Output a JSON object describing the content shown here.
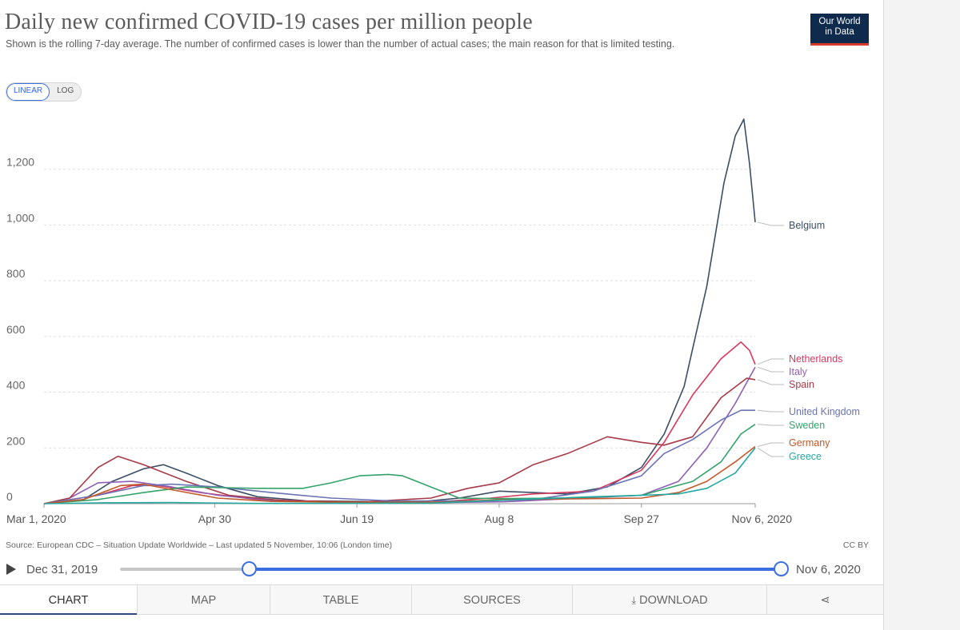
{
  "header": {
    "title": "Daily new confirmed COVID-19 cases per million people",
    "subtitle": "Shown is the rolling 7-day average. The number of confirmed cases is lower than the number of actual cases; the main reason for that is limited testing.",
    "logo_line1": "Our World",
    "logo_line2": "in Data"
  },
  "scale_toggle": {
    "linear": "LINEAR",
    "log": "LOG",
    "selected": "LINEAR"
  },
  "chart_data": {
    "type": "line",
    "title": "Daily new confirmed COVID-19 cases per million people",
    "xlabel": "",
    "ylabel": "",
    "x_ticks": [
      "Mar 1, 2020",
      "Apr 30",
      "Jun 19",
      "Aug 8",
      "Sep 27",
      "Nov 6, 2020"
    ],
    "y_ticks": [
      "0",
      "200",
      "400",
      "600",
      "800",
      "1,000",
      "1,200"
    ],
    "ylim": [
      0,
      1400
    ],
    "xlim": [
      "2020-03-01",
      "2020-11-06"
    ],
    "grid": "horizontal dashed",
    "legend": "line-end labels",
    "series": [
      {
        "name": "Belgium",
        "color": "#3c4e66",
        "points": [
          [
            "2020-03-01",
            0
          ],
          [
            "2020-03-15",
            15
          ],
          [
            "2020-03-25",
            80
          ],
          [
            "2020-04-05",
            125
          ],
          [
            "2020-04-12",
            140
          ],
          [
            "2020-04-20",
            110
          ],
          [
            "2020-05-01",
            65
          ],
          [
            "2020-05-15",
            25
          ],
          [
            "2020-06-01",
            10
          ],
          [
            "2020-06-20",
            8
          ],
          [
            "2020-07-10",
            6
          ],
          [
            "2020-07-25",
            20
          ],
          [
            "2020-08-08",
            45
          ],
          [
            "2020-08-20",
            40
          ],
          [
            "2020-09-01",
            35
          ],
          [
            "2020-09-15",
            60
          ],
          [
            "2020-09-27",
            130
          ],
          [
            "2020-10-05",
            250
          ],
          [
            "2020-10-12",
            420
          ],
          [
            "2020-10-20",
            780
          ],
          [
            "2020-10-26",
            1150
          ],
          [
            "2020-10-30",
            1320
          ],
          [
            "2020-11-02",
            1380
          ],
          [
            "2020-11-04",
            1220
          ],
          [
            "2020-11-06",
            1010
          ]
        ]
      },
      {
        "name": "Netherlands",
        "color": "#d7385e",
        "points": [
          [
            "2020-03-01",
            0
          ],
          [
            "2020-03-20",
            30
          ],
          [
            "2020-04-01",
            65
          ],
          [
            "2020-04-10",
            65
          ],
          [
            "2020-04-25",
            40
          ],
          [
            "2020-05-15",
            15
          ],
          [
            "2020-06-15",
            5
          ],
          [
            "2020-07-15",
            5
          ],
          [
            "2020-08-05",
            20
          ],
          [
            "2020-08-20",
            35
          ],
          [
            "2020-09-10",
            45
          ],
          [
            "2020-09-27",
            120
          ],
          [
            "2020-10-05",
            220
          ],
          [
            "2020-10-15",
            390
          ],
          [
            "2020-10-25",
            520
          ],
          [
            "2020-11-01",
            580
          ],
          [
            "2020-11-04",
            550
          ],
          [
            "2020-11-06",
            500
          ]
        ]
      },
      {
        "name": "Italy",
        "color": "#8e5fb5",
        "points": [
          [
            "2020-03-01",
            0
          ],
          [
            "2020-03-10",
            20
          ],
          [
            "2020-03-20",
            75
          ],
          [
            "2020-04-01",
            80
          ],
          [
            "2020-04-15",
            60
          ],
          [
            "2020-05-01",
            30
          ],
          [
            "2020-05-20",
            12
          ],
          [
            "2020-06-10",
            5
          ],
          [
            "2020-07-10",
            3
          ],
          [
            "2020-08-10",
            7
          ],
          [
            "2020-09-10",
            22
          ],
          [
            "2020-09-27",
            30
          ],
          [
            "2020-10-10",
            80
          ],
          [
            "2020-10-20",
            200
          ],
          [
            "2020-10-30",
            360
          ],
          [
            "2020-11-06",
            490
          ]
        ]
      },
      {
        "name": "Spain",
        "color": "#a63a48",
        "points": [
          [
            "2020-03-01",
            0
          ],
          [
            "2020-03-10",
            20
          ],
          [
            "2020-03-20",
            130
          ],
          [
            "2020-03-27",
            170
          ],
          [
            "2020-04-05",
            140
          ],
          [
            "2020-04-20",
            80
          ],
          [
            "2020-05-05",
            30
          ],
          [
            "2020-05-25",
            10
          ],
          [
            "2020-06-20",
            6
          ],
          [
            "2020-07-15",
            20
          ],
          [
            "2020-07-28",
            55
          ],
          [
            "2020-08-08",
            75
          ],
          [
            "2020-08-20",
            140
          ],
          [
            "2020-09-01",
            180
          ],
          [
            "2020-09-15",
            240
          ],
          [
            "2020-09-27",
            220
          ],
          [
            "2020-10-05",
            210
          ],
          [
            "2020-10-15",
            240
          ],
          [
            "2020-10-25",
            380
          ],
          [
            "2020-11-03",
            450
          ],
          [
            "2020-11-06",
            445
          ]
        ]
      },
      {
        "name": "United Kingdom",
        "color": "#6a73b5",
        "points": [
          [
            "2020-03-01",
            0
          ],
          [
            "2020-03-20",
            30
          ],
          [
            "2020-04-05",
            65
          ],
          [
            "2020-04-15",
            70
          ],
          [
            "2020-05-01",
            60
          ],
          [
            "2020-05-20",
            40
          ],
          [
            "2020-06-10",
            20
          ],
          [
            "2020-07-01",
            10
          ],
          [
            "2020-08-01",
            10
          ],
          [
            "2020-08-20",
            15
          ],
          [
            "2020-09-10",
            45
          ],
          [
            "2020-09-27",
            100
          ],
          [
            "2020-10-05",
            180
          ],
          [
            "2020-10-15",
            230
          ],
          [
            "2020-10-25",
            300
          ],
          [
            "2020-11-01",
            335
          ],
          [
            "2020-11-06",
            335
          ]
        ]
      },
      {
        "name": "Sweden",
        "color": "#33a36a",
        "points": [
          [
            "2020-03-01",
            0
          ],
          [
            "2020-03-20",
            15
          ],
          [
            "2020-04-05",
            40
          ],
          [
            "2020-04-20",
            60
          ],
          [
            "2020-05-15",
            55
          ],
          [
            "2020-05-31",
            55
          ],
          [
            "2020-06-10",
            75
          ],
          [
            "2020-06-20",
            100
          ],
          [
            "2020-06-30",
            105
          ],
          [
            "2020-07-05",
            100
          ],
          [
            "2020-07-15",
            60
          ],
          [
            "2020-07-25",
            20
          ],
          [
            "2020-08-08",
            18
          ],
          [
            "2020-09-01",
            20
          ],
          [
            "2020-09-27",
            30
          ],
          [
            "2020-10-15",
            80
          ],
          [
            "2020-10-25",
            150
          ],
          [
            "2020-11-01",
            250
          ],
          [
            "2020-11-06",
            285
          ]
        ]
      },
      {
        "name": "Germany",
        "color": "#c05a2a",
        "points": [
          [
            "2020-03-01",
            0
          ],
          [
            "2020-03-15",
            15
          ],
          [
            "2020-03-28",
            65
          ],
          [
            "2020-04-05",
            70
          ],
          [
            "2020-04-15",
            50
          ],
          [
            "2020-05-01",
            20
          ],
          [
            "2020-05-20",
            8
          ],
          [
            "2020-06-20",
            5
          ],
          [
            "2020-07-20",
            6
          ],
          [
            "2020-08-10",
            15
          ],
          [
            "2020-09-10",
            18
          ],
          [
            "2020-09-27",
            20
          ],
          [
            "2020-10-10",
            40
          ],
          [
            "2020-10-20",
            80
          ],
          [
            "2020-10-30",
            150
          ],
          [
            "2020-11-06",
            205
          ]
        ]
      },
      {
        "name": "Greece",
        "color": "#22a8a2",
        "points": [
          [
            "2020-03-01",
            0
          ],
          [
            "2020-03-20",
            3
          ],
          [
            "2020-04-15",
            4
          ],
          [
            "2020-05-15",
            1
          ],
          [
            "2020-07-15",
            2
          ],
          [
            "2020-08-15",
            15
          ],
          [
            "2020-09-10",
            25
          ],
          [
            "2020-09-27",
            30
          ],
          [
            "2020-10-10",
            35
          ],
          [
            "2020-10-20",
            55
          ],
          [
            "2020-10-30",
            110
          ],
          [
            "2020-11-06",
            200
          ]
        ]
      }
    ]
  },
  "source": "Source: European CDC – Situation Update Worldwide – Last updated 5 November, 10:06 (London time)",
  "license": "CC BY",
  "timeline": {
    "start_label": "Dec 31, 2019",
    "end_label": "Nov 6, 2020",
    "selected_start_fraction": 0.195,
    "selected_end_fraction": 1.0
  },
  "tabs": [
    {
      "label": "CHART",
      "active": true
    },
    {
      "label": "MAP",
      "active": false
    },
    {
      "label": "TABLE",
      "active": false
    },
    {
      "label": "SOURCES",
      "active": false
    },
    {
      "label": "DOWNLOAD",
      "active": false
    },
    {
      "label": "share-icon",
      "active": false
    }
  ]
}
